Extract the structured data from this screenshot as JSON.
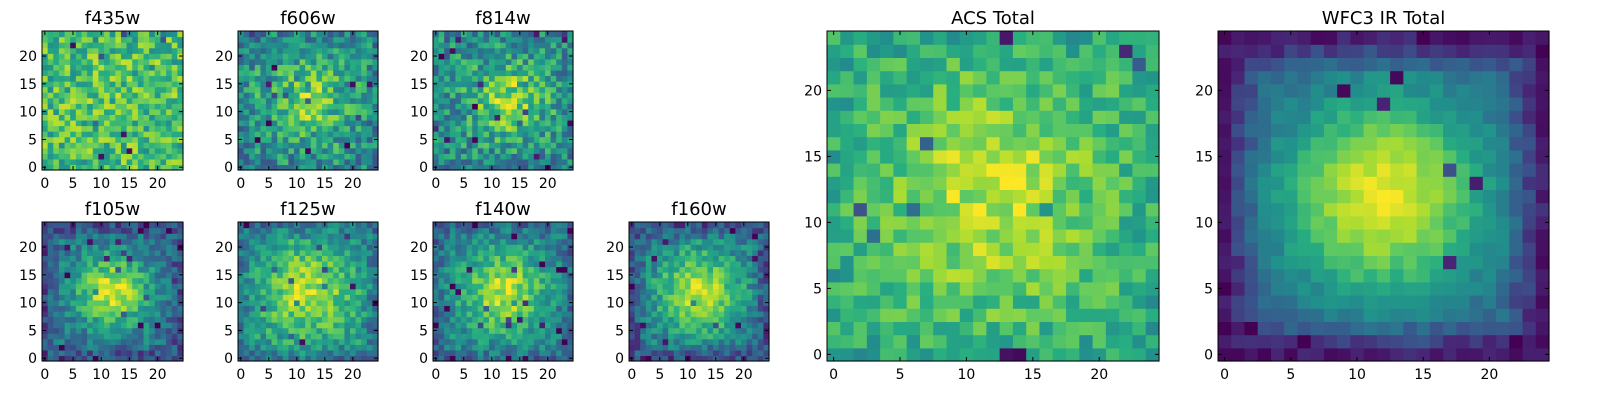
{
  "figure": {
    "description_free": true
  },
  "colormap": "viridis",
  "chart_data": [
    {
      "type": "heatmap",
      "title": "f435w",
      "size": 25,
      "xticks": [
        0,
        5,
        10,
        15,
        20
      ],
      "yticks": [
        0,
        5,
        10,
        15,
        20
      ],
      "profile": {
        "mode": "flat",
        "base": 0.68,
        "peak": 0.04,
        "cx": 13,
        "cy": 13,
        "sigma": 8,
        "noise": 0.22,
        "edge": 0.0,
        "seed": 11
      }
    },
    {
      "type": "heatmap",
      "title": "f606w",
      "size": 25,
      "xticks": [
        0,
        5,
        10,
        15,
        20
      ],
      "yticks": [
        0,
        5,
        10,
        15,
        20
      ],
      "profile": {
        "mode": "blob",
        "base": 0.5,
        "peak": 0.3,
        "cx": 12,
        "cy": 12,
        "sigma": 5,
        "noise": 0.22,
        "edge": 0.05,
        "seed": 23
      }
    },
    {
      "type": "heatmap",
      "title": "f814w",
      "size": 25,
      "xticks": [
        0,
        5,
        10,
        15,
        20
      ],
      "yticks": [
        0,
        5,
        10,
        15,
        20
      ],
      "profile": {
        "mode": "blob",
        "base": 0.5,
        "peak": 0.35,
        "cx": 13,
        "cy": 12,
        "sigma": 4.5,
        "noise": 0.22,
        "edge": 0.05,
        "seed": 37
      }
    },
    {
      "type": "heatmap",
      "title": "f105w",
      "size": 25,
      "xticks": [
        0,
        5,
        10,
        15,
        20
      ],
      "yticks": [
        0,
        5,
        10,
        15,
        20
      ],
      "profile": {
        "mode": "blob",
        "base": 0.38,
        "peak": 0.55,
        "cx": 12,
        "cy": 12,
        "sigma": 4.5,
        "noise": 0.15,
        "edge": 0.15,
        "seed": 41
      }
    },
    {
      "type": "heatmap",
      "title": "f125w",
      "size": 25,
      "xticks": [
        0,
        5,
        10,
        15,
        20
      ],
      "yticks": [
        0,
        5,
        10,
        15,
        20
      ],
      "profile": {
        "mode": "blob",
        "base": 0.48,
        "peak": 0.4,
        "cx": 12,
        "cy": 12,
        "sigma": 6,
        "noise": 0.16,
        "edge": 0.12,
        "seed": 53
      }
    },
    {
      "type": "heatmap",
      "title": "f140w",
      "size": 25,
      "xticks": [
        0,
        5,
        10,
        15,
        20
      ],
      "yticks": [
        0,
        5,
        10,
        15,
        20
      ],
      "profile": {
        "mode": "blob",
        "base": 0.45,
        "peak": 0.45,
        "cx": 12,
        "cy": 12,
        "sigma": 5,
        "noise": 0.15,
        "edge": 0.12,
        "seed": 67
      }
    },
    {
      "type": "heatmap",
      "title": "f160w",
      "size": 25,
      "xticks": [
        0,
        5,
        10,
        15,
        20
      ],
      "yticks": [
        0,
        5,
        10,
        15,
        20
      ],
      "profile": {
        "mode": "blob",
        "base": 0.42,
        "peak": 0.5,
        "cx": 12,
        "cy": 12,
        "sigma": 5,
        "noise": 0.15,
        "edge": 0.2,
        "seed": 79
      }
    },
    {
      "type": "heatmap",
      "title": "ACS Total",
      "size": 25,
      "xticks": [
        0,
        5,
        10,
        15,
        20
      ],
      "yticks": [
        0,
        5,
        10,
        15,
        20
      ],
      "profile": {
        "mode": "blob",
        "base": 0.62,
        "peak": 0.28,
        "cx": 12,
        "cy": 12,
        "sigma": 6,
        "noise": 0.14,
        "edge": 0.04,
        "seed": 97
      }
    },
    {
      "type": "heatmap",
      "title": "WFC3 IR Total",
      "size": 25,
      "xticks": [
        0,
        5,
        10,
        15,
        20
      ],
      "yticks": [
        0,
        5,
        10,
        15,
        20
      ],
      "profile": {
        "mode": "blob",
        "base": 0.3,
        "peak": 0.68,
        "cx": 12,
        "cy": 12,
        "sigma": 5.5,
        "noise": 0.06,
        "edge": 0.25,
        "seed": 113
      }
    }
  ]
}
